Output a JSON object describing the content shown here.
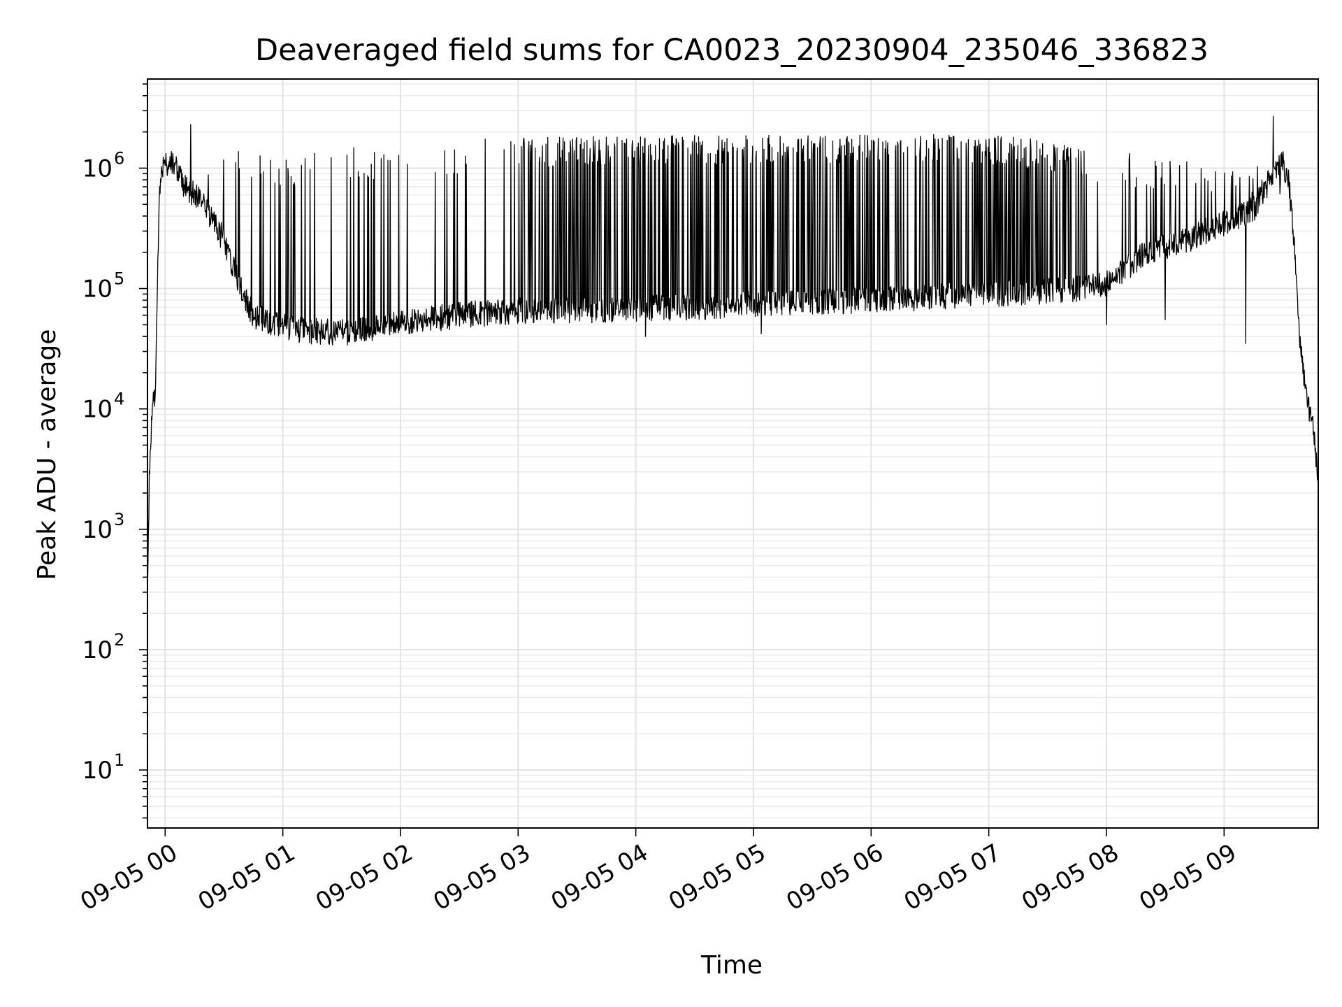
{
  "chart_data": {
    "type": "line",
    "title": "Deaveraged field sums for CA0023_20230904_235046_336823",
    "xlabel": "Time",
    "ylabel": "Peak ADU - average",
    "x_scale": "time",
    "y_scale": "log",
    "xlim": [
      "2023-09-04 23:51",
      "2023-09-05 09:48"
    ],
    "ylim": [
      3.3,
      5500000
    ],
    "grid": true,
    "grid_minor": true,
    "legend": "none",
    "line_color": "#000000",
    "x_tick_labels": [
      "09-05 00",
      "09-05 01",
      "09-05 02",
      "09-05 03",
      "09-05 04",
      "09-05 05",
      "09-05 06",
      "09-05 07",
      "09-05 08",
      "09-05 09"
    ],
    "x_ticks": [
      "2023-09-05 00:00",
      "2023-09-05 01:00",
      "2023-09-05 02:00",
      "2023-09-05 03:00",
      "2023-09-05 04:00",
      "2023-09-05 05:00",
      "2023-09-05 06:00",
      "2023-09-05 07:00",
      "2023-09-05 08:00",
      "2023-09-05 09:00"
    ],
    "y_ticks": [
      10,
      100,
      1000,
      10000,
      100000,
      1000000
    ],
    "y_tick_labels": [
      {
        "base": "10",
        "exp": "1"
      },
      {
        "base": "10",
        "exp": "2"
      },
      {
        "base": "10",
        "exp": "3"
      },
      {
        "base": "10",
        "exp": "4"
      },
      {
        "base": "10",
        "exp": "5"
      },
      {
        "base": "10",
        "exp": "6"
      }
    ],
    "series": [
      {
        "baseline": [
          [
            "2023-09-04 23:51",
            250
          ],
          [
            "2023-09-04 23:52",
            3000
          ],
          [
            "2023-09-04 23:53",
            8000
          ],
          [
            "2023-09-04 23:54",
            12000
          ],
          [
            "2023-09-04 23:55",
            14000
          ],
          [
            "2023-09-04 23:56",
            100000
          ],
          [
            "2023-09-04 23:57",
            600000
          ],
          [
            "2023-09-04 23:58",
            900000
          ],
          [
            "2023-09-05 00:00",
            1100000
          ],
          [
            "2023-09-05 00:05",
            1050000
          ],
          [
            "2023-09-05 00:10",
            700000
          ],
          [
            "2023-09-05 00:20",
            500000
          ],
          [
            "2023-09-05 00:30",
            250000
          ],
          [
            "2023-09-05 00:40",
            90000
          ],
          [
            "2023-09-05 00:45",
            60000
          ],
          [
            "2023-09-05 00:55",
            52000
          ],
          [
            "2023-09-05 01:10",
            45000
          ],
          [
            "2023-09-05 01:30",
            43000
          ],
          [
            "2023-09-05 01:50",
            47000
          ],
          [
            "2023-09-05 02:10",
            55000
          ],
          [
            "2023-09-05 02:40",
            62000
          ],
          [
            "2023-09-05 03:00",
            65000
          ],
          [
            "2023-09-05 03:30",
            66000
          ],
          [
            "2023-09-05 04:00",
            68000
          ],
          [
            "2023-09-05 04:30",
            70000
          ],
          [
            "2023-09-05 05:00",
            75000
          ],
          [
            "2023-09-05 05:30",
            78000
          ],
          [
            "2023-09-05 06:00",
            80000
          ],
          [
            "2023-09-05 06:30",
            85000
          ],
          [
            "2023-09-05 07:00",
            90000
          ],
          [
            "2023-09-05 07:30",
            95000
          ],
          [
            "2023-09-05 07:50",
            100000
          ],
          [
            "2023-09-05 08:00",
            110000
          ],
          [
            "2023-09-05 08:20",
            200000
          ],
          [
            "2023-09-05 08:40",
            250000
          ],
          [
            "2023-09-05 09:00",
            350000
          ],
          [
            "2023-09-05 09:15",
            450000
          ],
          [
            "2023-09-05 09:25",
            900000
          ],
          [
            "2023-09-05 09:30",
            1100000
          ],
          [
            "2023-09-05 09:33",
            800000
          ],
          [
            "2023-09-05 09:36",
            200000
          ],
          [
            "2023-09-05 09:39",
            30000
          ],
          [
            "2023-09-05 09:42",
            12000
          ],
          [
            "2023-09-05 09:45",
            8000
          ],
          [
            "2023-09-05 09:48",
            2500
          ]
        ],
        "spike_envelope": [
          [
            "2023-09-05 00:00",
            1500000
          ],
          [
            "2023-09-05 00:30",
            1500000
          ],
          [
            "2023-09-05 01:00",
            1200000
          ],
          [
            "2023-09-05 01:30",
            1500000
          ],
          [
            "2023-09-05 02:00",
            1600000
          ],
          [
            "2023-09-05 02:30",
            1700000
          ],
          [
            "2023-09-05 03:00",
            1800000
          ],
          [
            "2023-09-05 04:00",
            1850000
          ],
          [
            "2023-09-05 05:00",
            1900000
          ],
          [
            "2023-09-05 06:00",
            1950000
          ],
          [
            "2023-09-05 07:00",
            1900000
          ],
          [
            "2023-09-05 07:30",
            1700000
          ],
          [
            "2023-09-05 08:00",
            1400000
          ],
          [
            "2023-09-05 08:30",
            1300000
          ],
          [
            "2023-09-05 09:00",
            1200000
          ],
          [
            "2023-09-05 09:30",
            1200000
          ]
        ],
        "dense_spikes": [
          [
            "2023-09-05 03:00",
            "2023-09-05 07:50"
          ]
        ],
        "peaks": [
          [
            "2023-09-05 00:13",
            2300000
          ],
          [
            "2023-09-05 09:25",
            2700000
          ]
        ],
        "dips": [
          [
            "2023-09-05 04:05",
            40000
          ],
          [
            "2023-09-05 05:04",
            42000
          ],
          [
            "2023-09-05 08:00",
            50000
          ],
          [
            "2023-09-05 08:30",
            55000
          ],
          [
            "2023-09-05 09:11",
            35000
          ]
        ]
      }
    ]
  }
}
